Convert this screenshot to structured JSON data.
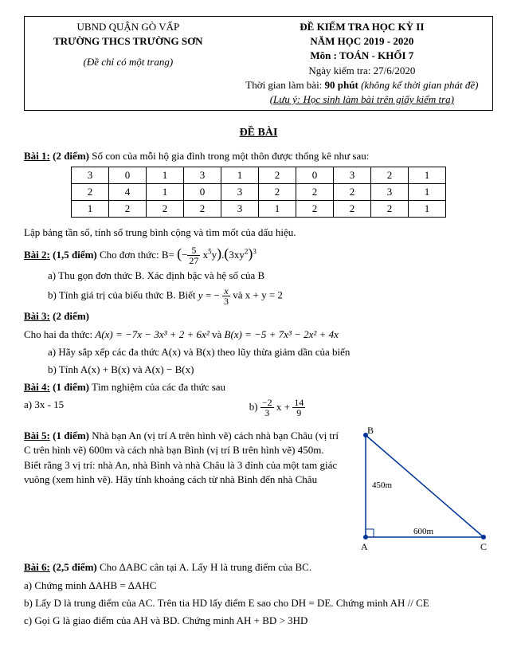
{
  "header": {
    "district": "UBND QUẬN GÒ VẤP",
    "school": "TRƯỜNG THCS TRƯỜNG SƠN",
    "page_note": "(Đề chỉ có một trang)",
    "exam_title": "ĐỀ KIỂM TRA HỌC KỲ II",
    "year": "NĂM HỌC 2019 - 2020",
    "subject": "Môn : TOÁN - KHỐI 7",
    "date": "Ngày kiểm tra: 27/6/2020",
    "duration_prefix": "Thời  gian làm bài: ",
    "duration_bold": "90 phút",
    "duration_note": " (không kể thời gian phát đề)",
    "hint": "(Lưu ý: Học sinh làm bài trên giấy kiểm tra)"
  },
  "section_title": "ĐỀ BÀI",
  "bai1": {
    "label": "Bài 1:",
    "points": "(2 điểm)",
    "text": " Số con của mỗi hộ gia đình trong một thôn được thống kê như sau:",
    "table": {
      "rows": [
        [
          "3",
          "0",
          "1",
          "3",
          "1",
          "2",
          "0",
          "3",
          "2",
          "1"
        ],
        [
          "2",
          "4",
          "1",
          "0",
          "3",
          "2",
          "2",
          "2",
          "3",
          "1"
        ],
        [
          "1",
          "2",
          "2",
          "2",
          "3",
          "1",
          "2",
          "2",
          "2",
          "1"
        ]
      ]
    },
    "after": "Lập bảng tần số, tính số trung bình cộng và tìm mốt của dấu hiệu."
  },
  "bai2": {
    "label": "Bài 2:",
    "points": "(1,5 điểm)",
    "lead": "   Cho đơn thức: B=",
    "a": "a) Thu gọn đơn thức B. Xác định bậc và hệ số của B",
    "b": "b) Tính giá trị của biểu thức B. Biết ",
    "b_tail": " và x + y = 2"
  },
  "bai3": {
    "label": "Bài 3:",
    "points": "(2 điểm)",
    "line1_a": "Cho hai đa thức: ",
    "ax": "A(x) = −7x − 3x³ + 2 + 6x²",
    "and": "   và   ",
    "bx": "B(x) = −5 + 7x³ − 2x² + 4x",
    "a": "a) Hãy sắp xếp các đa thức A(x) và B(x) theo lũy thừa giảm dần của biến",
    "b": "b) Tính A(x) + B(x)  và  A(x) − B(x)"
  },
  "bai4": {
    "label": "Bài 4:",
    "points": "(1 điểm)",
    "text": " Tìm nghiệm của các đa thức sau",
    "a": "a) 3x - 15",
    "b_prefix": "b)  "
  },
  "bai5": {
    "label": "Bài 5:",
    "points": "(1 điểm)",
    "text": " Nhà bạn An (vị trí A trên hình vẽ) cách nhà bạn Châu (vị trí C trên hình vẽ) 600m và cách nhà bạn Bình (vị trí B trên hình vẽ) 450m. Biết rằng 3 vị trí: nhà An, nhà Bình và nhà Châu là 3 đỉnh của một tam giác vuông (xem hình vẽ). Hãy tính khoảng cách từ nhà Bình đến nhà Châu",
    "fig": {
      "ab_label": "450m",
      "ac_label": "600m",
      "A": "A",
      "B": "B",
      "C": "C"
    }
  },
  "bai6": {
    "label": "Bài 6:",
    "points": "(2,5 điểm)",
    "lead": " Cho ∆ABC cân tại A. Lấy H là trung điểm của BC.",
    "a": "a) Chứng minh ∆AHB = ∆AHC",
    "b": "b) Lấy D là trung điểm của AC. Trên tia HD lấy điểm E sao cho DH = DE. Chứng minh AH // CE",
    "c": "c) Gọi G là giao điểm của AH và BD. Chứng minh AH + BD > 3HD"
  }
}
